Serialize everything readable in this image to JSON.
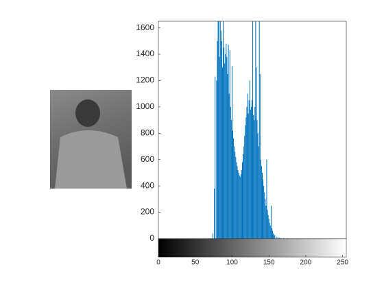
{
  "chart_data": {
    "type": "stem",
    "x": [
      74,
      76,
      77,
      79,
      80,
      81,
      82,
      83,
      84,
      85,
      86,
      87,
      88,
      89,
      90,
      91,
      92,
      93,
      94,
      95,
      96,
      97,
      98,
      99,
      100,
      101,
      102,
      103,
      104,
      105,
      106,
      107,
      108,
      109,
      110,
      111,
      112,
      113,
      114,
      115,
      116,
      117,
      118,
      119,
      120,
      121,
      122,
      123,
      124,
      125,
      126,
      127,
      128,
      129,
      130,
      131,
      132,
      133,
      134,
      135,
      136,
      137,
      138,
      139,
      140,
      141,
      142,
      143,
      144,
      145,
      146,
      147,
      148,
      149,
      150,
      151,
      152,
      153,
      154,
      155,
      156,
      157,
      158,
      160,
      162,
      164,
      166,
      170,
      175,
      180,
      190,
      200,
      210,
      220
    ],
    "values": [
      40,
      380,
      1230,
      1200,
      1500,
      1700,
      1650,
      1380,
      1700,
      1580,
      1500,
      1300,
      1700,
      1450,
      1330,
      1400,
      1480,
      1380,
      1250,
      1470,
      1100,
      1430,
      1000,
      900,
      1310,
      820,
      760,
      700,
      660,
      620,
      580,
      550,
      520,
      500,
      480,
      470,
      490,
      520,
      580,
      640,
      700,
      780,
      860,
      920,
      1000,
      1100,
      950,
      1050,
      1200,
      980,
      1000,
      1050,
      1700,
      940,
      900,
      1000,
      1700,
      1300,
      900,
      800,
      700,
      1700,
      1250,
      600,
      550,
      500,
      450,
      400,
      350,
      300,
      250,
      600,
      220,
      180,
      150,
      120,
      100,
      250,
      80,
      60,
      40,
      30,
      25,
      15,
      10,
      8,
      6,
      5,
      4,
      3,
      3,
      2,
      2,
      1
    ],
    "color": "#0072BD",
    "xlim": [
      0,
      255
    ],
    "xticks": [
      0,
      50,
      100,
      150,
      200,
      250
    ],
    "ylim": [
      0,
      1650
    ],
    "yticks": [
      0,
      200,
      400,
      600,
      800,
      1000,
      1200,
      1400,
      1600
    ]
  }
}
